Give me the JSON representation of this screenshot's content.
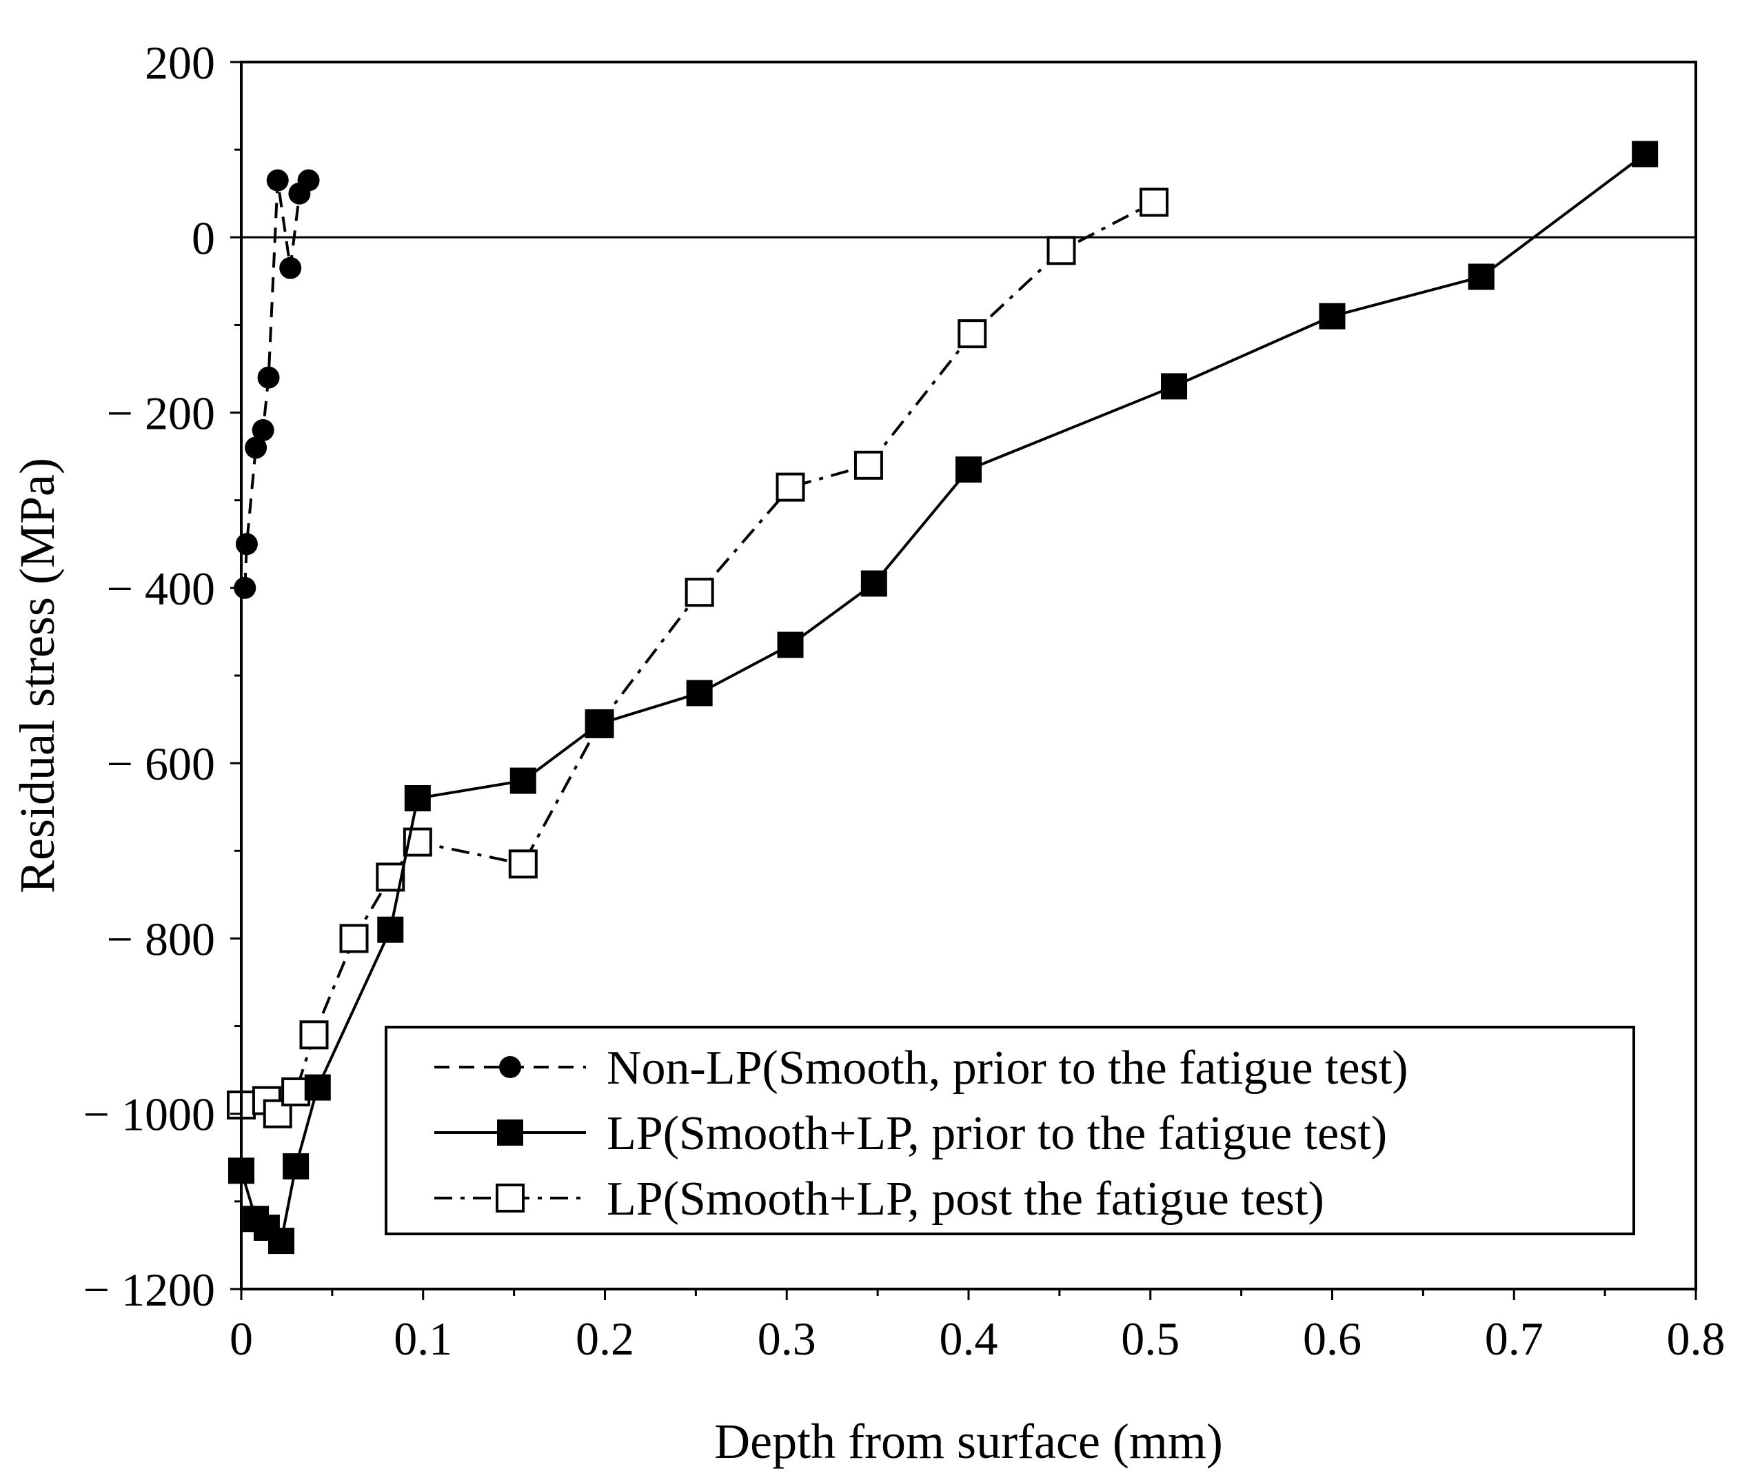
{
  "chart_data": {
    "type": "line",
    "xlabel": "Depth from surface (mm)",
    "ylabel": "Residual stress (MPa)",
    "xlim": [
      0,
      0.8
    ],
    "ylim": [
      -1200,
      200
    ],
    "xticks": [
      0,
      0.1,
      0.2,
      0.3,
      0.4,
      0.5,
      0.6,
      0.7,
      0.8
    ],
    "xtick_labels": [
      "0",
      "0.1",
      "0.2",
      "0.3",
      "0.4",
      "0.5",
      "0.6",
      "0.7",
      "0.8"
    ],
    "yticks": [
      200,
      0,
      -200,
      -400,
      -600,
      -800,
      -1000,
      -1200
    ],
    "ytick_labels": [
      "200",
      "0",
      "− 200",
      "− 400",
      "− 600",
      "− 800",
      "− 1000",
      "− 1200"
    ],
    "reference_line_y": 0,
    "legend_position": "lower-right",
    "series": [
      {
        "name": "Non-LP(Smooth, prior to the fatigue test)",
        "line_style": "dashed",
        "marker": "filled-circle",
        "x": [
          0.002,
          0.003,
          0.008,
          0.012,
          0.015,
          0.02,
          0.027,
          0.032,
          0.037
        ],
        "y": [
          -400,
          -350,
          -240,
          -220,
          -160,
          65,
          -35,
          50,
          65
        ]
      },
      {
        "name": "LP(Smooth+LP, prior to the fatigue test)",
        "line_style": "solid",
        "marker": "filled-square",
        "x": [
          0.0,
          0.008,
          0.014,
          0.022,
          0.03,
          0.042,
          0.082,
          0.097,
          0.155,
          0.197,
          0.252,
          0.302,
          0.348,
          0.4,
          0.513,
          0.6,
          0.682,
          0.772
        ],
        "y": [
          -1065,
          -1120,
          -1130,
          -1145,
          -1060,
          -970,
          -790,
          -640,
          -620,
          -555,
          -520,
          -465,
          -395,
          -265,
          -170,
          -90,
          -45,
          95
        ]
      },
      {
        "name": "LP(Smooth+LP, post the fatigue test)",
        "line_style": "dash-dot",
        "marker": "open-square",
        "x": [
          0.0,
          0.014,
          0.02,
          0.03,
          0.04,
          0.062,
          0.082,
          0.097,
          0.155,
          0.197,
          0.252,
          0.302,
          0.345,
          0.402,
          0.451,
          0.502
        ],
        "y": [
          -990,
          -985,
          -1000,
          -975,
          -910,
          -800,
          -730,
          -690,
          -715,
          -555,
          -405,
          -285,
          -260,
          -110,
          -15,
          40
        ]
      }
    ]
  }
}
